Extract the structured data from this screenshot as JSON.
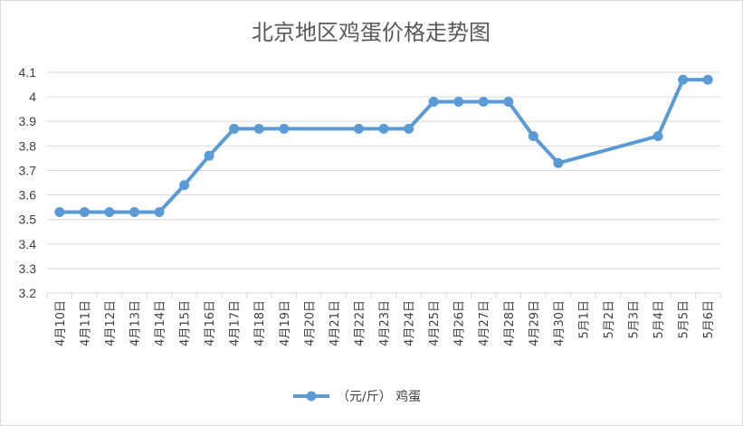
{
  "chart_data": {
    "type": "line",
    "title": "北京地区鸡蛋价格走势图",
    "xlabel": "",
    "ylabel": "",
    "ylim": [
      3.2,
      4.1
    ],
    "yticks": [
      "3.2",
      "3.3",
      "3.4",
      "3.5",
      "3.6",
      "3.7",
      "3.8",
      "3.9",
      "4",
      "4.1"
    ],
    "grid": true,
    "legend_position": "bottom",
    "categories": [
      "4月10日",
      "4月11日",
      "4月12日",
      "4月13日",
      "4月14日",
      "4月15日",
      "4月16日",
      "4月17日",
      "4月18日",
      "4月19日",
      "4月20日",
      "4月21日",
      "4月22日",
      "4月23日",
      "4月24日",
      "4月25日",
      "4月26日",
      "4月27日",
      "4月28日",
      "4月29日",
      "4月30日",
      "5月1日",
      "5月2日",
      "5月3日",
      "5月4日",
      "5月5日",
      "5月6日"
    ],
    "series": [
      {
        "name": "（元/斤） 鸡蛋",
        "color": "#5b9bd5",
        "values": [
          3.53,
          3.53,
          3.53,
          3.53,
          3.53,
          3.64,
          3.76,
          3.87,
          3.87,
          3.87,
          null,
          null,
          3.87,
          3.87,
          3.87,
          3.98,
          3.98,
          3.98,
          3.98,
          3.84,
          3.73,
          null,
          null,
          null,
          3.84,
          4.07,
          4.07
        ]
      }
    ]
  }
}
